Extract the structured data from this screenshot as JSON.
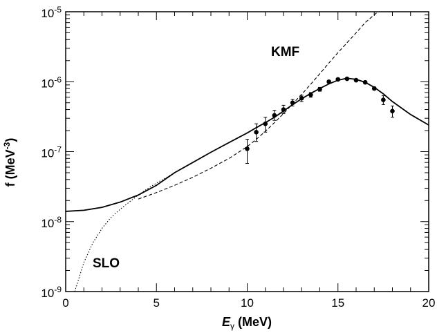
{
  "chart_data": {
    "type": "line",
    "x_axis": {
      "title_symbol": "E",
      "title_subscript": "γ",
      "title_unit": " (MeV)",
      "range": [
        0,
        20
      ],
      "ticks": [
        0,
        5,
        10,
        15,
        20
      ],
      "tick_labels": [
        "0",
        "5",
        "10",
        "15",
        "20"
      ]
    },
    "y_axis": {
      "title_main": "f (MeV",
      "title_sup": "-3",
      "title_close": ")",
      "scale": "log",
      "range": [
        1e-09,
        1e-05
      ],
      "ticks": [
        {
          "base": "10",
          "exp": "-9",
          "value": 1e-09
        },
        {
          "base": "10",
          "exp": "-8",
          "value": 1e-08
        },
        {
          "base": "10",
          "exp": "-7",
          "value": 1e-07
        },
        {
          "base": "10",
          "exp": "-6",
          "value": 1e-06
        },
        {
          "base": "10",
          "exp": "-5",
          "value": 1e-05
        }
      ]
    },
    "annotations": {
      "kmf": "KMF",
      "slo": "SLO"
    },
    "series": [
      {
        "style": "solid",
        "x": [
          0,
          1,
          2,
          3,
          4,
          5,
          6,
          7,
          8,
          9,
          10,
          10.5,
          11,
          11.5,
          12,
          12.5,
          13,
          13.5,
          14,
          14.5,
          15,
          15.5,
          16,
          16.5,
          17,
          17.5,
          18,
          19,
          20
        ],
        "y": [
          1.4e-08,
          1.45e-08,
          1.6e-08,
          1.9e-08,
          2.4e-08,
          3.3e-08,
          5e-08,
          7e-08,
          9.8e-08,
          1.35e-07,
          1.85e-07,
          2.2e-07,
          2.6e-07,
          3.1e-07,
          3.8e-07,
          4.7e-07,
          5.7e-07,
          6.8e-07,
          8e-07,
          9.3e-07,
          1.05e-06,
          1.12e-06,
          1.08e-06,
          9.8e-07,
          8.3e-07,
          6.7e-07,
          5.2e-07,
          3.4e-07,
          2.4e-07
        ]
      },
      {
        "style": "dashed",
        "x": [
          4,
          5,
          6,
          7,
          8,
          9,
          10,
          10.5,
          11,
          11.5,
          12,
          12.5,
          13,
          13.5,
          14,
          14.5,
          15,
          15.5,
          16,
          16.5,
          17.2
        ],
        "y": [
          2.1e-08,
          2.6e-08,
          3.3e-08,
          4.3e-08,
          5.8e-08,
          8e-08,
          1.18e-07,
          1.5e-07,
          1.95e-07,
          2.6e-07,
          3.5e-07,
          4.8e-07,
          6.6e-07,
          9.2e-07,
          1.3e-06,
          1.85e-06,
          2.6e-06,
          3.6e-06,
          5e-06,
          7e-06,
          1e-05
        ]
      },
      {
        "style": "dotted",
        "x": [
          0.5,
          1,
          1.5,
          2,
          2.5,
          3,
          3.5,
          4,
          4.5,
          5,
          5.5,
          6
        ],
        "y": [
          1e-09,
          2.6e-09,
          5e-09,
          8e-09,
          1.15e-08,
          1.5e-08,
          1.9e-08,
          2.4e-08,
          2.95e-08,
          3.55e-08,
          4.2e-08,
          5e-08
        ]
      },
      {
        "style": "points",
        "x": [
          10.0,
          10.5,
          11.0,
          11.5,
          12.0,
          12.5,
          13.0,
          13.5,
          14.0,
          14.5,
          15.0,
          15.5,
          16.0,
          16.5,
          17.0,
          17.5,
          18.0
        ],
        "y": [
          1.1e-07,
          1.9e-07,
          2.5e-07,
          3.3e-07,
          4e-07,
          5e-07,
          5.8e-07,
          6.5e-07,
          7.8e-07,
          1e-06,
          1.08e-06,
          1.1e-06,
          1.05e-06,
          9.8e-07,
          8e-07,
          5.5e-07,
          3.8e-07
        ],
        "err_lo": [
          6.8e-08,
          1.4e-07,
          1.9e-07,
          2.8e-07,
          3.5e-07,
          4.5e-07,
          5.2e-07,
          6e-07,
          7.3e-07,
          9.6e-07,
          1.04e-06,
          1.07e-06,
          1.01e-06,
          9.4e-07,
          7.6e-07,
          4.7e-07,
          3.1e-07
        ],
        "err_hi": [
          1.5e-07,
          2.5e-07,
          3.1e-07,
          3.9e-07,
          4.6e-07,
          5.6e-07,
          6.4e-07,
          7e-07,
          8.3e-07,
          1.04e-06,
          1.12e-06,
          1.14e-06,
          1.09e-06,
          1.02e-06,
          8.4e-07,
          6.3e-07,
          4.5e-07
        ]
      }
    ]
  }
}
